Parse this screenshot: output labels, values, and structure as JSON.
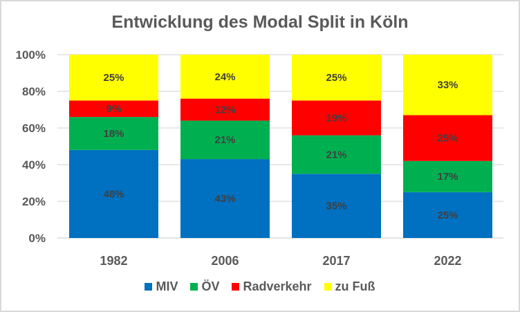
{
  "chart_data": {
    "type": "bar",
    "stacked": true,
    "title": "Entwicklung des Modal Split in Köln",
    "xlabel": "",
    "ylabel": "",
    "ylim": [
      0,
      100
    ],
    "y_ticks": [
      "0%",
      "20%",
      "40%",
      "60%",
      "80%",
      "100%"
    ],
    "y_tick_values": [
      0,
      20,
      40,
      60,
      80,
      100
    ],
    "grid": true,
    "legend_position": "bottom",
    "categories": [
      "1982",
      "2006",
      "2017",
      "2022"
    ],
    "series": [
      {
        "name": "MIV",
        "color": "#0070C0",
        "values": [
          48,
          43,
          35,
          25
        ],
        "labels": [
          "48%",
          "43%",
          "35%",
          "25%"
        ]
      },
      {
        "name": "ÖV",
        "color": "#00B050",
        "values": [
          18,
          21,
          21,
          17
        ],
        "labels": [
          "18%",
          "21%",
          "21%",
          "17%"
        ]
      },
      {
        "name": "Radverkehr",
        "color": "#FF0000",
        "values": [
          9,
          12,
          19,
          25
        ],
        "labels": [
          "9%",
          "12%",
          "19%",
          "25%"
        ]
      },
      {
        "name": "zu Fuß",
        "color": "#FFFF00",
        "values": [
          25,
          24,
          25,
          33
        ],
        "labels": [
          "25%",
          "24%",
          "25%",
          "33%"
        ]
      }
    ]
  }
}
